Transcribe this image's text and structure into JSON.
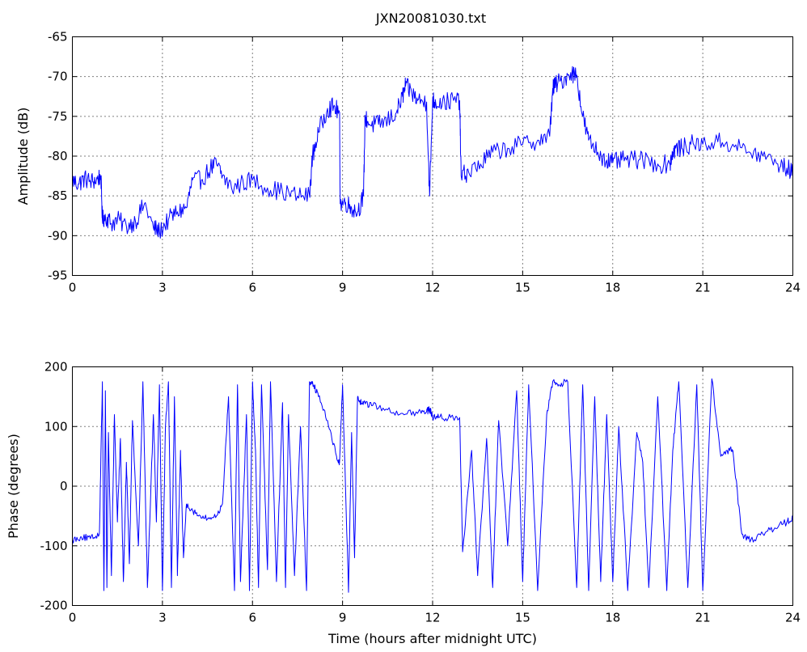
{
  "chart_data": [
    {
      "type": "line",
      "title": "JXN20081030.txt",
      "xlabel": "",
      "ylabel": "Amplitude (dB)",
      "xlim": [
        0,
        24
      ],
      "ylim": [
        -95,
        -65
      ],
      "xticks": [
        0,
        3,
        6,
        9,
        12,
        15,
        18,
        21,
        24
      ],
      "yticks": [
        -95,
        -90,
        -85,
        -80,
        -75,
        -70,
        -65
      ],
      "grid": true,
      "color": "#0000ff",
      "series": [
        {
          "x": [
            0,
            0.2,
            0.4,
            0.6,
            0.8,
            0.95,
            1.0,
            1.1,
            1.3,
            1.5,
            1.8,
            2.1,
            2.4,
            2.7,
            2.9,
            3.2,
            3.5,
            3.8,
            4.0,
            4.3,
            4.6,
            4.8,
            5.0,
            5.3,
            5.6,
            6.0,
            6.5,
            7.0,
            7.5,
            7.9,
            8.0,
            8.2,
            8.5,
            8.7,
            8.9,
            8.92,
            9.1,
            9.3,
            9.5,
            9.7,
            9.75,
            9.9,
            10.2,
            10.5,
            10.8,
            11.0,
            11.1,
            11.3,
            11.5,
            11.8,
            11.9,
            12.0,
            12.1,
            12.4,
            12.7,
            12.9,
            12.95,
            13.2,
            13.6,
            14.0,
            14.5,
            15.0,
            15.5,
            15.9,
            16.0,
            16.1,
            16.3,
            16.6,
            16.8,
            17.0,
            17.2,
            17.5,
            17.8,
            18.0,
            18.3,
            18.7,
            19.0,
            19.5,
            19.9,
            20.0,
            20.1,
            20.3,
            20.6,
            21.0,
            21.5,
            22.0,
            22.5,
            23.0,
            23.5,
            23.8,
            24.0
          ],
          "values": [
            -83,
            -83.5,
            -82.8,
            -83.2,
            -83,
            -82.5,
            -88,
            -87.5,
            -88.5,
            -88,
            -88.8,
            -88.2,
            -86,
            -89,
            -89.5,
            -88,
            -87,
            -86.5,
            -83,
            -83,
            -81.5,
            -81,
            -82.5,
            -84,
            -83.5,
            -83,
            -84,
            -84.5,
            -85,
            -85,
            -80,
            -77,
            -74,
            -73.8,
            -74.5,
            -86,
            -85.8,
            -86.5,
            -87,
            -85,
            -75,
            -76,
            -76,
            -75.5,
            -74.5,
            -72.5,
            -71.2,
            -72,
            -73,
            -73.2,
            -85,
            -73,
            -73.2,
            -73.2,
            -73,
            -73,
            -82.5,
            -82,
            -81,
            -79.5,
            -79,
            -78.5,
            -78,
            -77.5,
            -71.5,
            -71,
            -70.5,
            -69.5,
            -69.8,
            -75,
            -78,
            -79.5,
            -80.5,
            -80.8,
            -80.5,
            -80.5,
            -80.5,
            -81,
            -81,
            -79.5,
            -79,
            -79,
            -78.5,
            -78.5,
            -78.2,
            -78.5,
            -79.5,
            -80,
            -81,
            -81.5,
            -82
          ]
        }
      ]
    },
    {
      "type": "line",
      "title": "",
      "xlabel": "Time (hours after midnight UTC)",
      "ylabel": "Phase (degrees)",
      "xlim": [
        0,
        24
      ],
      "ylim": [
        -200,
        200
      ],
      "xticks": [
        0,
        3,
        6,
        9,
        12,
        15,
        18,
        21,
        24
      ],
      "yticks": [
        -200,
        -100,
        0,
        100,
        200
      ],
      "grid": true,
      "color": "#0000ff",
      "series": [
        {
          "x": [
            0,
            0.3,
            0.6,
            0.9,
            1.0,
            1.05,
            1.1,
            1.15,
            1.2,
            1.3,
            1.4,
            1.5,
            1.6,
            1.7,
            1.8,
            1.9,
            2.0,
            2.2,
            2.35,
            2.5,
            2.7,
            2.8,
            2.9,
            3.0,
            3.1,
            3.2,
            3.3,
            3.4,
            3.5,
            3.6,
            3.7,
            3.8,
            4.0,
            4.2,
            4.5,
            4.8,
            5.0,
            5.2,
            5.4,
            5.5,
            5.6,
            5.8,
            5.9,
            6.0,
            6.1,
            6.2,
            6.3,
            6.5,
            6.6,
            6.8,
            7.0,
            7.1,
            7.2,
            7.4,
            7.6,
            7.8,
            7.9,
            8.0,
            8.2,
            8.5,
            8.8,
            8.9,
            9.0,
            9.2,
            9.3,
            9.4,
            9.5,
            9.6,
            9.7,
            10.0,
            10.5,
            11.0,
            11.5,
            11.8,
            11.9,
            12.0,
            12.2,
            12.6,
            12.9,
            13.0,
            13.3,
            13.5,
            13.8,
            14.0,
            14.2,
            14.5,
            14.8,
            15.0,
            15.2,
            15.5,
            15.8,
            16.0,
            16.2,
            16.5,
            16.8,
            17.0,
            17.2,
            17.4,
            17.6,
            17.8,
            18.0,
            18.2,
            18.5,
            18.8,
            19.0,
            19.2,
            19.5,
            19.8,
            20.0,
            20.2,
            20.5,
            20.8,
            21.0,
            21.3,
            21.6,
            21.9,
            22.0,
            22.3,
            22.6,
            23.0,
            23.4,
            23.8,
            24.0
          ],
          "values": [
            -90,
            -85,
            -88,
            -80,
            175,
            -175,
            160,
            -170,
            90,
            -150,
            120,
            -60,
            80,
            -160,
            40,
            -130,
            110,
            -100,
            175,
            -170,
            120,
            -60,
            170,
            -175,
            100,
            175,
            -170,
            150,
            -150,
            60,
            -120,
            -30,
            -40,
            -50,
            -55,
            -50,
            -30,
            150,
            -175,
            170,
            -160,
            120,
            -175,
            175,
            60,
            -170,
            170,
            -140,
            175,
            -160,
            140,
            -170,
            120,
            -150,
            100,
            -175,
            175,
            175,
            150,
            110,
            50,
            40,
            170,
            -178,
            90,
            -120,
            150,
            140,
            140,
            135,
            128,
            122,
            122,
            125,
            130,
            115,
            115,
            115,
            115,
            -110,
            60,
            -150,
            80,
            -170,
            110,
            -100,
            160,
            -160,
            170,
            -175,
            120,
            175,
            170,
            175,
            -170,
            170,
            -175,
            150,
            -160,
            120,
            -160,
            100,
            -175,
            90,
            40,
            -170,
            150,
            -175,
            60,
            175,
            -170,
            170,
            -175,
            180,
            50,
            60,
            60,
            -80,
            -90,
            -80,
            -70,
            -60,
            -55
          ]
        }
      ]
    }
  ]
}
